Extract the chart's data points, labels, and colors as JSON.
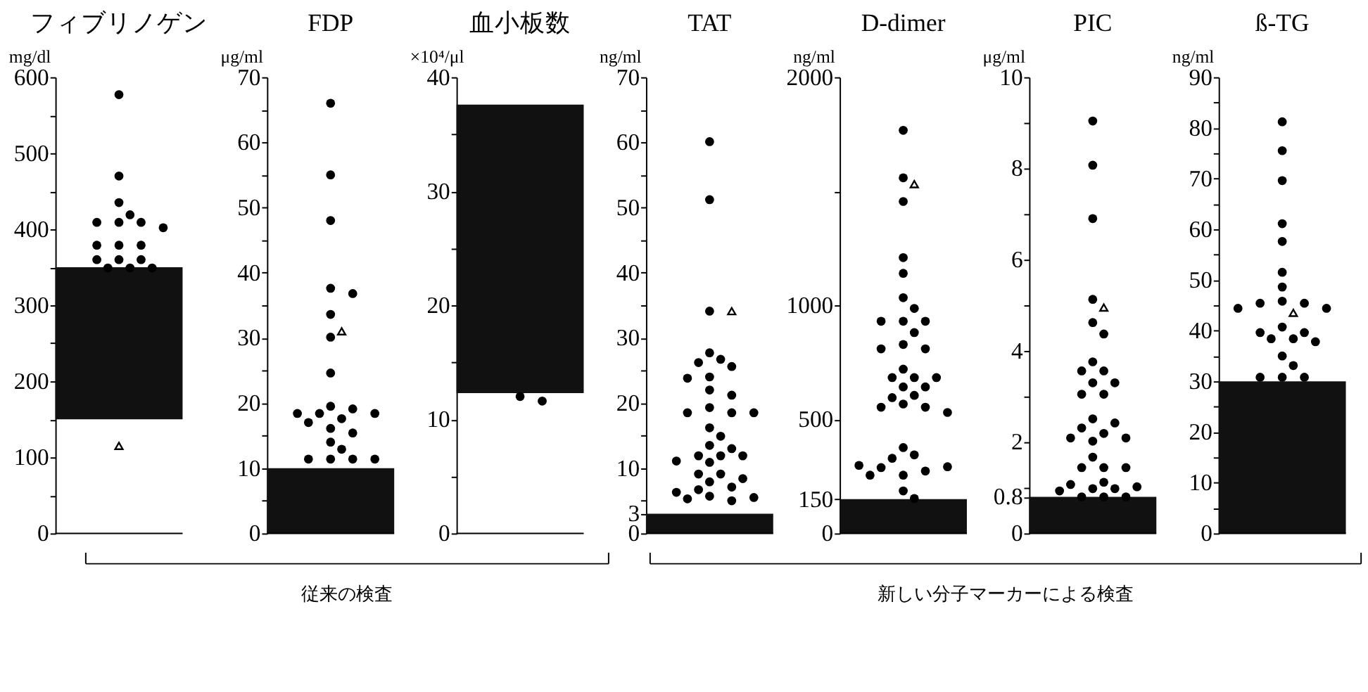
{
  "chart_data": [
    {
      "type": "scatter",
      "ylabel": "mg/dl",
      "categories": [
        "フィブリノゲン"
      ],
      "ylim": [
        0,
        600
      ],
      "yticks": [
        0,
        {
          "value": 50,
          "label": null
        },
        100,
        {
          "value": 150,
          "label": null
        },
        200,
        {
          "value": 250,
          "label": null
        },
        300,
        {
          "value": 350,
          "label": null
        },
        400,
        {
          "value": 450,
          "label": null
        },
        500,
        {
          "value": 550,
          "label": null
        },
        600
      ],
      "marker": "circle",
      "bands": [
        {
          "axis": "y",
          "from": 150,
          "to": 350,
          "color": "#111111"
        }
      ],
      "series": [
        {
          "color": "#000000",
          "x": [
            "フィブリノゲン",
            "フィブリノゲン",
            "フィブリノゲン",
            "フィブリノゲン",
            "フィブリノゲン",
            "フィブリノゲン",
            "フィブリノゲン",
            "フィブリノゲン",
            "フィブリノゲン",
            "フィブリノゲン",
            "フィブリノゲン",
            "フィブリノゲン",
            "フィブリノゲン",
            "フィブリノゲン",
            "フィブリノゲン",
            "フィブリノゲン",
            "フィブリノゲン"
          ],
          "values": [
            577,
            470,
            435,
            419,
            409,
            409,
            409,
            402,
            379,
            379,
            379,
            360,
            360,
            360,
            349,
            349,
            349
          ]
        },
        {
          "color": "#000000",
          "marker": "triangle",
          "x": [
            "フィブリノゲン"
          ],
          "values": [
            115
          ]
        }
      ]
    },
    {
      "type": "scatter",
      "ylabel": "μg/ml",
      "categories": [
        "FDP"
      ],
      "ylim": [
        0,
        70
      ],
      "yticks": [
        0,
        {
          "value": 5,
          "label": null
        },
        10,
        {
          "value": 15,
          "label": null
        },
        20,
        {
          "value": 25,
          "label": null
        },
        30,
        {
          "value": 35,
          "label": null
        },
        40,
        {
          "value": 45,
          "label": null
        },
        50,
        {
          "value": 55,
          "label": null
        },
        60,
        {
          "value": 65,
          "label": null
        },
        70
      ],
      "marker": "circle",
      "bands": [
        {
          "axis": "y",
          "from": 0,
          "to": 10,
          "color": "#111111"
        }
      ],
      "series": [
        {
          "color": "#000000",
          "x": [
            "FDP",
            "FDP",
            "FDP",
            "FDP",
            "FDP",
            "FDP",
            "FDP",
            "FDP",
            "FDP",
            "FDP",
            "FDP",
            "FDP",
            "FDP",
            "FDP",
            "FDP",
            "FDP",
            "FDP",
            "FDP",
            "FDP",
            "FDP",
            "FDP",
            "FDP",
            "FDP"
          ],
          "values": [
            66,
            55,
            48,
            37.6,
            36.8,
            33.6,
            30.1,
            24.6,
            19.5,
            19.1,
            18.4,
            18.4,
            18.4,
            17.6,
            17,
            16.1,
            15.4,
            14,
            12.9,
            11.4,
            11.4,
            11.4,
            11.4
          ]
        },
        {
          "color": "#000000",
          "marker": "triangle",
          "x": [
            "FDP"
          ],
          "values": [
            31
          ]
        }
      ]
    },
    {
      "type": "scatter",
      "ylabel": "×10⁴/μl",
      "categories": [
        "血小板数"
      ],
      "ylim": [
        0,
        40
      ],
      "yticks": [
        0,
        {
          "value": 5,
          "label": null
        },
        10,
        {
          "value": 15,
          "label": null
        },
        20,
        {
          "value": 25,
          "label": null
        },
        30,
        {
          "value": 35,
          "label": null
        },
        40
      ],
      "marker": "circle",
      "bands": [
        {
          "axis": "y",
          "from": 12.3,
          "to": 37.6,
          "color": "#111111"
        }
      ],
      "series": [
        {
          "color": "#000000",
          "x": [
            "血小板数",
            "血小板数"
          ],
          "values": [
            12.0,
            11.6
          ]
        }
      ]
    },
    {
      "type": "scatter",
      "ylabel": "ng/ml",
      "categories": [
        "TAT"
      ],
      "ylim": [
        0,
        70
      ],
      "yticks": [
        0,
        3,
        {
          "value": 5,
          "label": null
        },
        10,
        {
          "value": 15,
          "label": null
        },
        20,
        {
          "value": 25,
          "label": null
        },
        30,
        {
          "value": 35,
          "label": null
        },
        40,
        {
          "value": 45,
          "label": null
        },
        50,
        {
          "value": 55,
          "label": null
        },
        60,
        {
          "value": 65,
          "label": null
        },
        70
      ],
      "marker": "circle",
      "bands": [
        {
          "axis": "y",
          "from": 0,
          "to": 3,
          "color": "#111111"
        }
      ],
      "series": [
        {
          "color": "#000000",
          "x": [
            "TAT",
            "TAT",
            "TAT",
            "TAT",
            "TAT",
            "TAT",
            "TAT",
            "TAT",
            "TAT",
            "TAT",
            "TAT",
            "TAT",
            "TAT",
            "TAT",
            "TAT",
            "TAT",
            "TAT",
            "TAT",
            "TAT",
            "TAT",
            "TAT",
            "TAT",
            "TAT",
            "TAT",
            "TAT",
            "TAT",
            "TAT",
            "TAT",
            "TAT",
            "TAT",
            "TAT",
            "TAT",
            "TAT",
            "TAT",
            "TAT"
          ],
          "values": [
            60.1,
            51.2,
            34.1,
            27.7,
            26.7,
            26.2,
            25.6,
            24,
            23.8,
            22,
            21.2,
            19.3,
            18.5,
            18.5,
            18.5,
            16.2,
            14.9,
            13.5,
            13,
            11.9,
            11.9,
            11.9,
            10.9,
            11.1,
            9.1,
            9.1,
            8.4,
            7.9,
            7.1,
            6.7,
            6.3,
            5.7,
            5.3,
            5,
            5.5
          ]
        },
        {
          "color": "#000000",
          "marker": "triangle",
          "x": [
            "TAT"
          ],
          "values": [
            34.1
          ]
        }
      ]
    },
    {
      "type": "scatter",
      "ylabel": "ng/ml",
      "categories": [
        "D-dimer"
      ],
      "ylim": [
        0,
        2000
      ],
      "yticks": [
        0,
        150,
        500,
        1000,
        {
          "value": 1500,
          "label": null
        },
        2000
      ],
      "marker": "circle",
      "bands": [
        {
          "axis": "y",
          "from": 0,
          "to": 150,
          "color": "#111111"
        }
      ],
      "series": [
        {
          "color": "#000000",
          "x": [
            "D-dimer",
            "D-dimer",
            "D-dimer",
            "D-dimer",
            "D-dimer",
            "D-dimer",
            "D-dimer",
            "D-dimer",
            "D-dimer",
            "D-dimer",
            "D-dimer",
            "D-dimer",
            "D-dimer",
            "D-dimer",
            "D-dimer",
            "D-dimer",
            "D-dimer",
            "D-dimer",
            "D-dimer",
            "D-dimer",
            "D-dimer",
            "D-dimer",
            "D-dimer",
            "D-dimer",
            "D-dimer",
            "D-dimer",
            "D-dimer",
            "D-dimer",
            "D-dimer",
            "D-dimer",
            "D-dimer",
            "D-dimer",
            "D-dimer",
            "D-dimer",
            "D-dimer",
            "D-dimer",
            "D-dimer"
          ],
          "values": [
            1767,
            1559,
            1455,
            1209,
            1140,
            1033,
            986,
            930,
            930,
            930,
            880,
            828,
            809,
            809,
            720,
            683,
            683,
            683,
            642,
            642,
            605,
            595,
            567,
            553,
            553,
            530,
            376,
            344,
            329,
            255,
            273,
            288,
            292,
            298,
            255,
            186,
            153
          ]
        },
        {
          "color": "#000000",
          "marker": "triangle",
          "x": [
            "D-dimer"
          ],
          "values": [
            1531
          ]
        }
      ]
    },
    {
      "type": "scatter",
      "ylabel": "μg/ml",
      "categories": [
        "PIC"
      ],
      "ylim": [
        0,
        10
      ],
      "yticks": [
        0,
        0.8,
        {
          "value": 1,
          "label": null
        },
        2,
        {
          "value": 3,
          "label": null
        },
        4,
        {
          "value": 5,
          "label": null
        },
        6,
        {
          "value": 7,
          "label": null
        },
        8,
        {
          "value": 9,
          "label": null
        },
        10
      ],
      "marker": "circle",
      "bands": [
        {
          "axis": "y",
          "from": 0,
          "to": 0.8,
          "color": "#111111"
        }
      ],
      "series": [
        {
          "color": "#000000",
          "x": [
            "PIC",
            "PIC",
            "PIC",
            "PIC",
            "PIC",
            "PIC",
            "PIC",
            "PIC",
            "PIC",
            "PIC",
            "PIC",
            "PIC",
            "PIC",
            "PIC",
            "PIC",
            "PIC",
            "PIC",
            "PIC",
            "PIC",
            "PIC",
            "PIC",
            "PIC",
            "PIC",
            "PIC",
            "PIC",
            "PIC",
            "PIC",
            "PIC",
            "PIC",
            "PIC",
            "PIC",
            "PIC",
            "PIC"
          ],
          "values": [
            9.04,
            8.07,
            6.9,
            5.13,
            4.62,
            4.37,
            3.76,
            3.56,
            3.56,
            3.3,
            3.3,
            3.05,
            3.05,
            2.51,
            2.42,
            2.31,
            2.19,
            2.02,
            2.09,
            2.09,
            1.67,
            1.44,
            1.44,
            1.44,
            0.98,
            0.98,
            1.12,
            1.07,
            1.02,
            0.93,
            0.8,
            0.8,
            0.8
          ]
        },
        {
          "color": "#000000",
          "marker": "triangle",
          "x": [
            "PIC"
          ],
          "values": [
            4.95
          ]
        }
      ]
    },
    {
      "type": "scatter",
      "ylabel": "ng/ml",
      "categories": [
        "ß-TG"
      ],
      "ylim": [
        0,
        90
      ],
      "yticks": [
        0,
        {
          "value": 5,
          "label": null
        },
        10,
        {
          "value": 15,
          "label": null
        },
        20,
        {
          "value": 25,
          "label": null
        },
        30,
        {
          "value": 35,
          "label": null
        },
        40,
        {
          "value": 45,
          "label": null
        },
        50,
        {
          "value": 55,
          "label": null
        },
        60,
        {
          "value": 65,
          "label": null
        },
        70,
        {
          "value": 75,
          "label": null
        },
        80,
        {
          "value": 85,
          "label": null
        },
        90
      ],
      "marker": "circle",
      "bands": [
        {
          "axis": "y",
          "from": 0,
          "to": 30,
          "color": "#111111"
        }
      ],
      "series": [
        {
          "color": "#000000",
          "x": [
            "ß-TG",
            "ß-TG",
            "ß-TG",
            "ß-TG",
            "ß-TG",
            "ß-TG",
            "ß-TG",
            "ß-TG",
            "ß-TG",
            "ß-TG",
            "ß-TG",
            "ß-TG",
            "ß-TG",
            "ß-TG",
            "ß-TG",
            "ß-TG",
            "ß-TG",
            "ß-TG",
            "ß-TG",
            "ß-TG",
            "ß-TG",
            "ß-TG",
            "ß-TG"
          ],
          "values": [
            81.2,
            75.5,
            69.6,
            61.1,
            57.6,
            51.5,
            48.6,
            45.8,
            45.4,
            45.4,
            44.4,
            44.4,
            40.7,
            39.6,
            39.6,
            38.4,
            38.4,
            37.8,
            35,
            33.1,
            30.8,
            30.8,
            30.8
          ]
        },
        {
          "color": "#000000",
          "marker": "triangle",
          "x": [
            "ß-TG"
          ],
          "values": [
            43.5
          ]
        }
      ]
    },
    {
      "type": "other",
      "annotations": [
        "従来の検査",
        "新しい分子マーカーによる検査"
      ]
    }
  ]
}
